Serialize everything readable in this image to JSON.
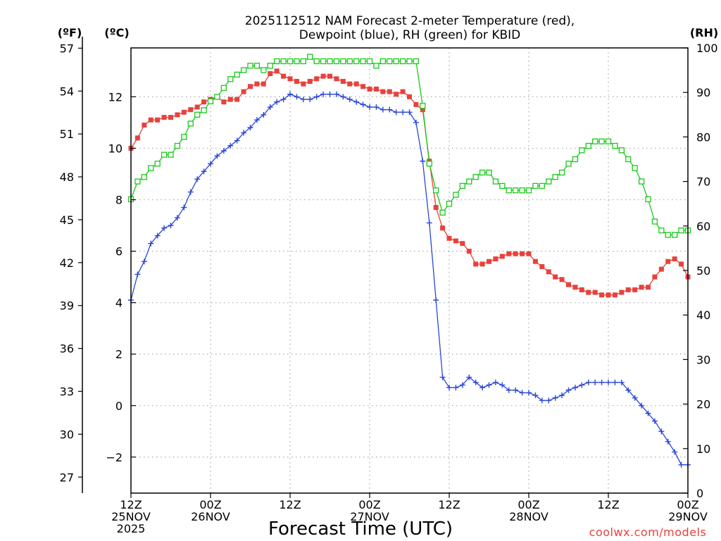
{
  "title_lines": [
    "2025112512 NAM Forecast 2-meter Temperature (red),",
    "Dewpoint (blue), RH (green) for KBID"
  ],
  "xlabel": "Forecast Time (UTC)",
  "credit": "coolwx.com/models",
  "units": {
    "fahrenheit": "(ºF)",
    "celsius": "(ºC)",
    "rh": "(RH)"
  },
  "colors": {
    "temperature": "#e8413c",
    "dewpoint": "#2a46d8",
    "rh": "#19c919",
    "grid": "#a8a8a8"
  },
  "chart_data": {
    "type": "line",
    "title": "2025112512 NAM Forecast 2-meter Temperature (red), Dewpoint (blue), RH (green) for KBID",
    "xlabel": "Forecast Time (UTC)",
    "x_unit": "forecast hour",
    "xlim": [
      0,
      84
    ],
    "x_ticks": [
      {
        "hour": 0,
        "lines": [
          "12Z",
          "25NOV",
          "2025"
        ]
      },
      {
        "hour": 12,
        "lines": [
          "00Z",
          "26NOV"
        ]
      },
      {
        "hour": 24,
        "lines": [
          "12Z"
        ]
      },
      {
        "hour": 36,
        "lines": [
          "00Z",
          "27NOV"
        ]
      },
      {
        "hour": 48,
        "lines": [
          "12Z"
        ]
      },
      {
        "hour": 60,
        "lines": [
          "00Z",
          "28NOV"
        ]
      },
      {
        "hour": 72,
        "lines": [
          "12Z"
        ]
      },
      {
        "hour": 84,
        "lines": [
          "00Z",
          "29NOV"
        ]
      }
    ],
    "y_celsius": {
      "label": "(ºC)",
      "range": [
        -3.4,
        13.9
      ],
      "ticks": [
        12,
        10,
        8,
        6,
        4,
        2,
        0,
        -2
      ]
    },
    "y_fahrenheit": {
      "label": "(ºF)",
      "ticks": [
        57,
        54,
        51,
        48,
        45,
        42,
        39,
        36,
        33,
        30,
        27
      ]
    },
    "y_rh": {
      "label": "(RH)",
      "range": [
        0,
        100
      ],
      "ticks": [
        100,
        90,
        80,
        70,
        60,
        50,
        40,
        30,
        20,
        10,
        0
      ]
    },
    "grid": true,
    "series": [
      {
        "name": "Temperature",
        "color": "#e8413c",
        "marker": "filled-square",
        "axis": "celsius",
        "x": [
          0,
          1,
          2,
          3,
          4,
          5,
          6,
          7,
          8,
          9,
          10,
          11,
          12,
          13,
          14,
          15,
          16,
          17,
          18,
          19,
          20,
          21,
          22,
          23,
          24,
          25,
          26,
          27,
          28,
          29,
          30,
          31,
          32,
          33,
          34,
          35,
          36,
          37,
          38,
          39,
          40,
          41,
          42,
          43,
          44,
          45,
          46,
          47,
          48,
          49,
          50,
          51,
          52,
          53,
          54,
          55,
          56,
          57,
          58,
          59,
          60,
          61,
          62,
          63,
          64,
          65,
          66,
          67,
          68,
          69,
          70,
          71,
          72,
          73,
          74,
          75,
          76,
          77,
          78,
          79,
          80,
          81,
          82,
          83,
          84
        ],
        "values": [
          10.0,
          10.4,
          10.9,
          11.1,
          11.1,
          11.2,
          11.2,
          11.3,
          11.4,
          11.5,
          11.6,
          11.8,
          11.9,
          12.0,
          11.8,
          11.9,
          11.9,
          12.2,
          12.4,
          12.5,
          12.5,
          12.9,
          13.0,
          12.8,
          12.7,
          12.6,
          12.5,
          12.6,
          12.7,
          12.8,
          12.8,
          12.7,
          12.6,
          12.5,
          12.5,
          12.4,
          12.3,
          12.3,
          12.2,
          12.2,
          12.1,
          12.2,
          12.0,
          11.7,
          11.5,
          9.5,
          7.7,
          6.9,
          6.5,
          6.4,
          6.3,
          6.0,
          5.5,
          5.5,
          5.6,
          5.7,
          5.8,
          5.9,
          5.9,
          5.9,
          5.9,
          5.6,
          5.4,
          5.2,
          5.0,
          4.9,
          4.7,
          4.6,
          4.5,
          4.4,
          4.4,
          4.3,
          4.3,
          4.3,
          4.4,
          4.5,
          4.5,
          4.6,
          4.6,
          5.0,
          5.3,
          5.6,
          5.7,
          5.5,
          5.0
        ]
      },
      {
        "name": "Dewpoint",
        "color": "#2a46d8",
        "marker": "plus",
        "axis": "celsius",
        "x": [
          0,
          1,
          2,
          3,
          4,
          5,
          6,
          7,
          8,
          9,
          10,
          11,
          12,
          13,
          14,
          15,
          16,
          17,
          18,
          19,
          20,
          21,
          22,
          23,
          24,
          25,
          26,
          27,
          28,
          29,
          30,
          31,
          32,
          33,
          34,
          35,
          36,
          37,
          38,
          39,
          40,
          41,
          42,
          43,
          44,
          45,
          46,
          47,
          48,
          49,
          50,
          51,
          52,
          53,
          54,
          55,
          56,
          57,
          58,
          59,
          60,
          61,
          62,
          63,
          64,
          65,
          66,
          67,
          68,
          69,
          70,
          71,
          72,
          73,
          74,
          75,
          76,
          77,
          78,
          79,
          80,
          81,
          82,
          83,
          84
        ],
        "values": [
          4.1,
          5.1,
          5.6,
          6.3,
          6.6,
          6.9,
          7.0,
          7.3,
          7.7,
          8.3,
          8.8,
          9.1,
          9.4,
          9.7,
          9.9,
          10.1,
          10.3,
          10.6,
          10.8,
          11.1,
          11.3,
          11.6,
          11.8,
          11.9,
          12.1,
          12.0,
          11.9,
          11.9,
          12.0,
          12.1,
          12.1,
          12.1,
          12.0,
          11.9,
          11.8,
          11.7,
          11.6,
          11.6,
          11.5,
          11.5,
          11.4,
          11.4,
          11.4,
          11.0,
          9.5,
          7.1,
          4.1,
          1.1,
          0.7,
          0.7,
          0.8,
          1.1,
          0.9,
          0.7,
          0.8,
          0.9,
          0.8,
          0.6,
          0.6,
          0.5,
          0.5,
          0.4,
          0.2,
          0.2,
          0.3,
          0.4,
          0.6,
          0.7,
          0.8,
          0.9,
          0.9,
          0.9,
          0.9,
          0.9,
          0.9,
          0.6,
          0.3,
          0.0,
          -0.3,
          -0.6,
          -1.0,
          -1.4,
          -1.8,
          -2.3,
          -2.3
        ]
      },
      {
        "name": "RH",
        "color": "#19c919",
        "marker": "open-square",
        "axis": "rh",
        "x": [
          0,
          1,
          2,
          3,
          4,
          5,
          6,
          7,
          8,
          9,
          10,
          11,
          12,
          13,
          14,
          15,
          16,
          17,
          18,
          19,
          20,
          21,
          22,
          23,
          24,
          25,
          26,
          27,
          28,
          29,
          30,
          31,
          32,
          33,
          34,
          35,
          36,
          37,
          38,
          39,
          40,
          41,
          42,
          43,
          44,
          45,
          46,
          47,
          48,
          49,
          50,
          51,
          52,
          53,
          54,
          55,
          56,
          57,
          58,
          59,
          60,
          61,
          62,
          63,
          64,
          65,
          66,
          67,
          68,
          69,
          70,
          71,
          72,
          73,
          74,
          75,
          76,
          77,
          78,
          79,
          80,
          81,
          82,
          83,
          84
        ],
        "values": [
          66,
          70,
          71,
          73,
          74,
          76,
          76,
          78,
          80,
          83,
          85,
          86,
          88,
          89,
          91,
          93,
          94,
          95,
          96,
          96,
          95,
          96,
          97,
          97,
          97,
          97,
          97,
          98,
          97,
          97,
          97,
          97,
          97,
          97,
          97,
          97,
          97,
          96,
          97,
          97,
          97,
          97,
          97,
          97,
          87,
          74,
          68,
          63,
          65,
          67,
          69,
          70,
          71,
          72,
          72,
          70,
          69,
          68,
          68,
          68,
          68,
          69,
          69,
          70,
          71,
          72,
          74,
          75,
          77,
          78,
          79,
          79,
          79,
          78,
          77,
          75,
          73,
          70,
          66,
          61,
          59,
          58,
          58,
          59,
          59
        ]
      }
    ]
  }
}
